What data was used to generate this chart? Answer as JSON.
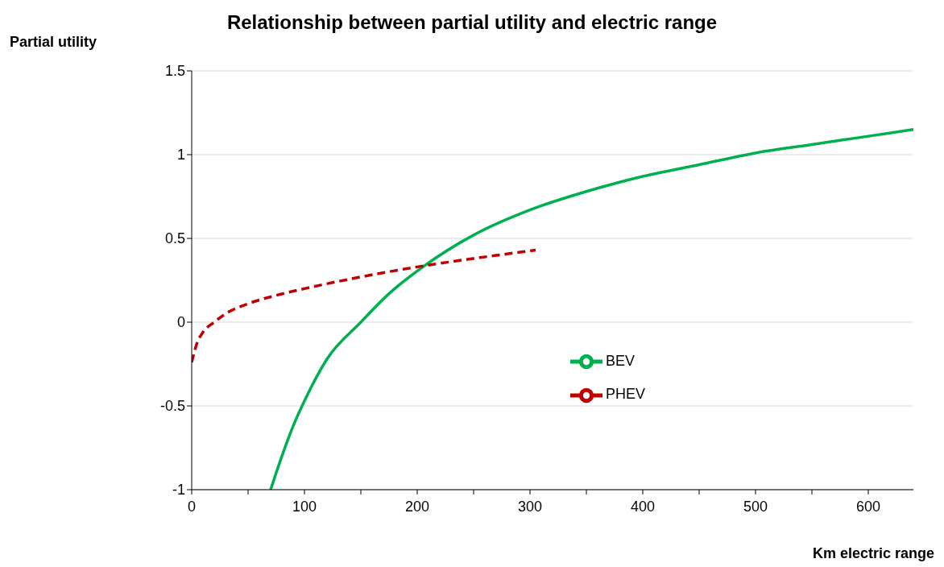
{
  "chart_data": {
    "type": "line",
    "title": "Relationship between partial utility and electric range",
    "xlabel": "Km electric range",
    "ylabel": "Partial utility",
    "xlim": [
      0,
      640
    ],
    "xticks": [
      0,
      {
        "value": 50,
        "label": null
      },
      100,
      {
        "value": 150,
        "label": null
      },
      200,
      {
        "value": 250,
        "label": null
      },
      300,
      {
        "value": 350,
        "label": null
      },
      400,
      {
        "value": 450,
        "label": null
      },
      500,
      {
        "value": 550,
        "label": null
      },
      600
    ],
    "ylim": [
      -1,
      1.5
    ],
    "yticks": [
      -1,
      -0.5,
      0,
      0.5,
      1,
      1.5
    ],
    "grid": "y",
    "legend": "center",
    "marker": "none",
    "series": [
      {
        "name": "BEV",
        "color": "#00b050",
        "line_style": "solid",
        "x": [
          70,
          80,
          90,
          100,
          120,
          150,
          175,
          205,
          250,
          300,
          350,
          400,
          450,
          500,
          550,
          600,
          640
        ],
        "values": [
          -1,
          -0.8,
          -0.62,
          -0.47,
          -0.22,
          0,
          0.17,
          0.33,
          0.52,
          0.67,
          0.78,
          0.87,
          0.94,
          1.01,
          1.06,
          1.11,
          1.15
        ]
      },
      {
        "name": "PHEV",
        "color": "#c00000",
        "line_style": "dashed",
        "x": [
          0,
          5,
          10,
          20,
          30,
          50,
          75,
          100,
          150,
          200,
          250,
          305
        ],
        "values": [
          -0.24,
          -0.12,
          -0.06,
          0,
          0.05,
          0.11,
          0.16,
          0.2,
          0.27,
          0.33,
          0.38,
          0.43
        ]
      }
    ]
  }
}
